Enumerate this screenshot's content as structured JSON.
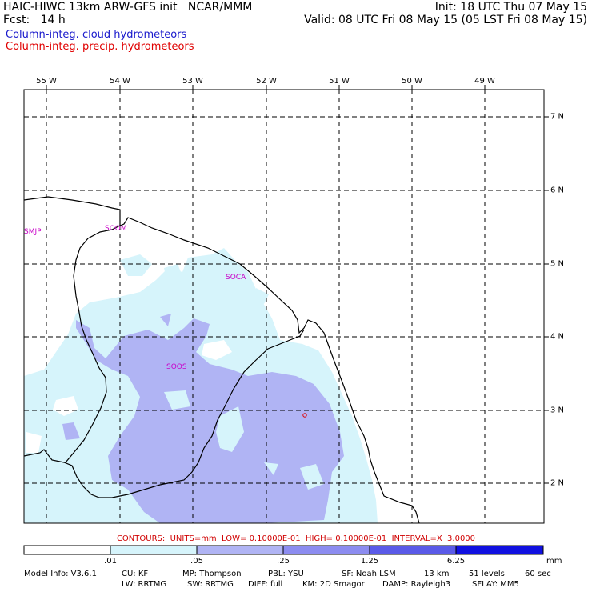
{
  "header": {
    "title": "HAIC-HIWC 13km ARW-GFS init   NCAR/MMM",
    "init": "Init: 18 UTC Thu 07 May 15",
    "fcst": "Fcst:   14 h",
    "valid": "Valid: 08 UTC Fri 08 May 15 (05 LST Fri 08 May 15)"
  },
  "fields": {
    "cloud": "Column-integ. cloud hydrometeors",
    "precip": "Column-integ. precip. hydrometeors",
    "cloud_color": "#1a1acc",
    "precip_color": "#e00000"
  },
  "lon_labels": [
    "55 W",
    "54 W",
    "53 W",
    "52 W",
    "51 W",
    "50 W",
    "49 W"
  ],
  "lat_labels": [
    "7 N",
    "6 N",
    "5 N",
    "4 N",
    "3 N",
    "2 N"
  ],
  "stations": [
    "SMJP",
    "SOOM",
    "SOCA",
    "SOOS"
  ],
  "contours_text": "CONTOURS:  UNITS=mm  LOW= 0.10000E-01  HIGH= 0.10000E-01  INTERVAL=X  3.0000",
  "colorbar": {
    "labels": [
      ".01",
      ".05",
      ".25",
      "1.25",
      "6.25"
    ],
    "unit": "mm",
    "colors": [
      "#ffffff",
      "#d6f4fb",
      "#b0b4f4",
      "#8c8cf0",
      "#5a5ae8",
      "#1010e0"
    ]
  },
  "model_info": {
    "line1": [
      "Model Info: V3.6.1",
      "CU: KF",
      "MP: Thompson",
      "PBL: YSU",
      "SF: Noah LSM",
      "13 km",
      "51 levels",
      "60 sec"
    ],
    "line2": [
      "LW: RRTMG",
      "SW: RRTMG",
      "DIFF: full",
      "KM: 2D Smagor",
      "DAMP: Rayleigh3",
      "SFLAY: MM5"
    ]
  }
}
